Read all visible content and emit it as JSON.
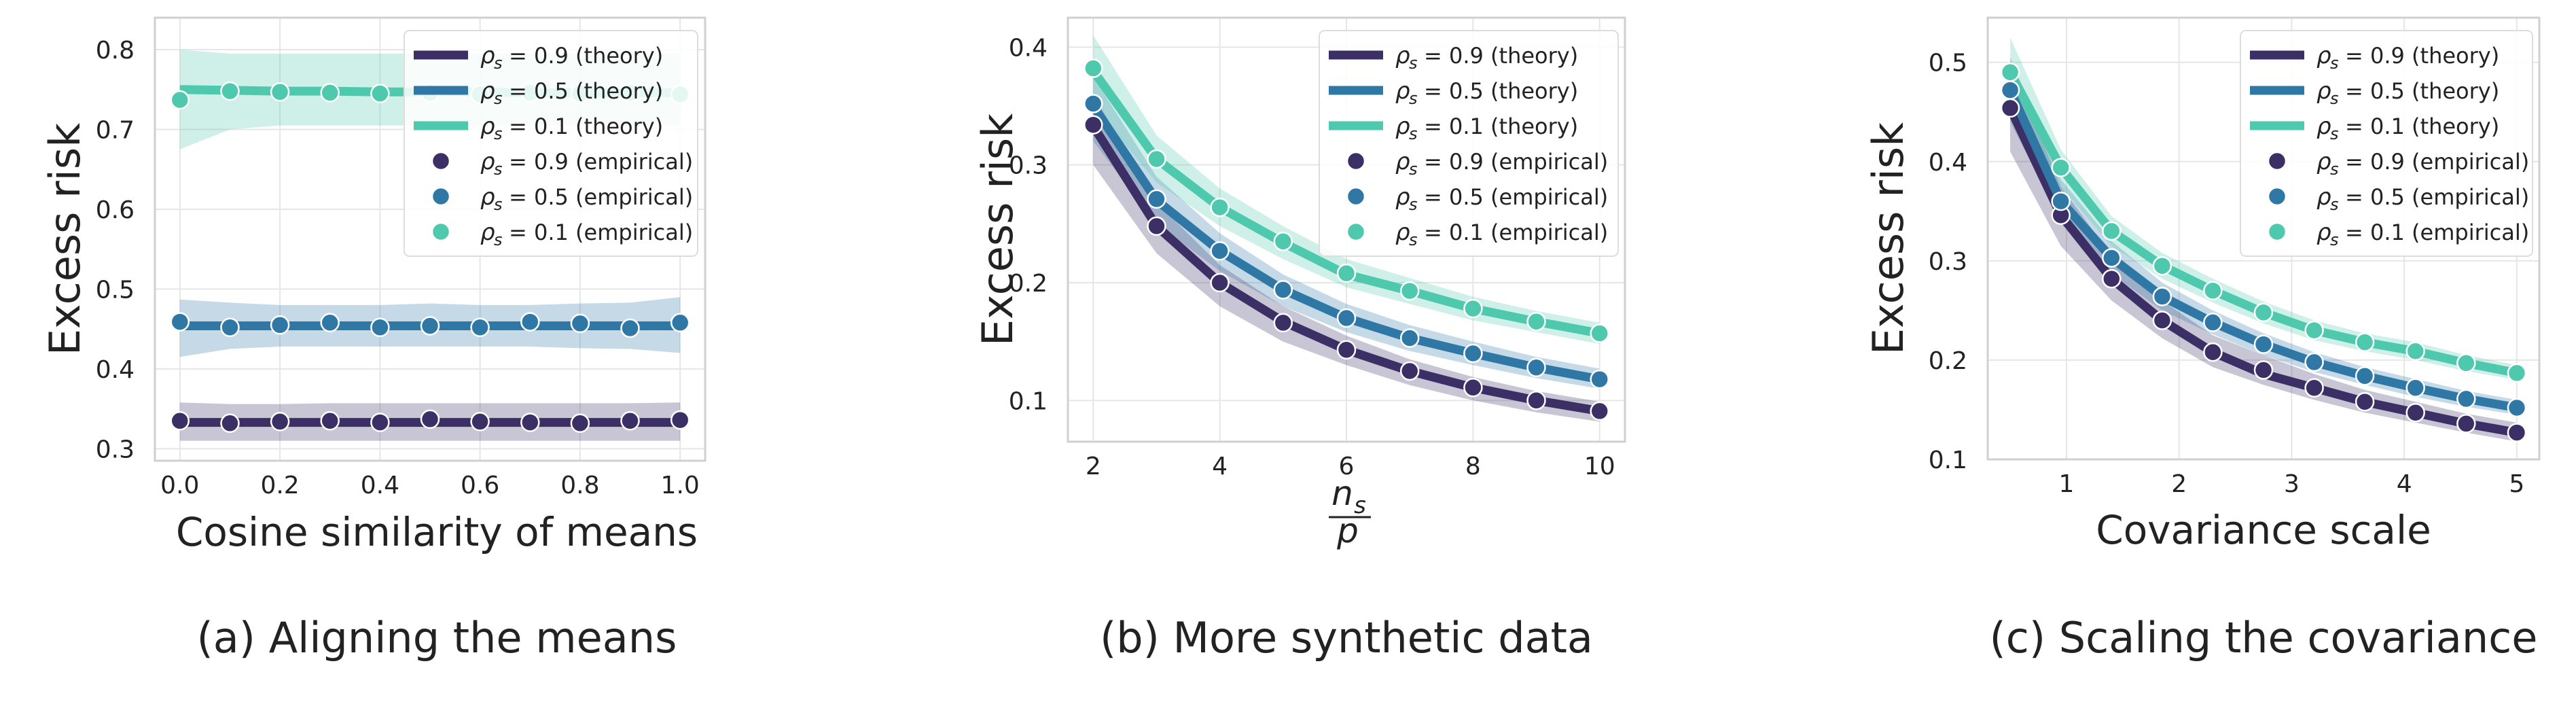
{
  "colors": {
    "rho_0.9": "#3b2f66",
    "rho_0.5": "#2f78a6",
    "rho_0.1": "#4ec9ad",
    "grid": "#e6e6e6",
    "frame": "#d0d0d0",
    "background": "#ffffff"
  },
  "legend_entries": [
    {
      "rho": "0.9",
      "kind": "theory",
      "text": "= 0.9 (theory)"
    },
    {
      "rho": "0.5",
      "kind": "theory",
      "text": "= 0.5 (theory)"
    },
    {
      "rho": "0.1",
      "kind": "theory",
      "text": "= 0.1 (theory)"
    },
    {
      "rho": "0.9",
      "kind": "empirical",
      "text": "= 0.9 (empirical)"
    },
    {
      "rho": "0.5",
      "kind": "empirical",
      "text": "= 0.5 (empirical)"
    },
    {
      "rho": "0.1",
      "kind": "empirical",
      "text": "= 0.1 (empirical)"
    }
  ],
  "legend_symbol": "ρ",
  "legend_subscript": "s",
  "chart_data": [
    {
      "type": "line",
      "caption": "(a) Aligning the means",
      "xlabel": "Cosine similarity of means",
      "ylabel": "Excess risk",
      "xlim": [
        -0.05,
        1.05
      ],
      "ylim": [
        0.285,
        0.84
      ],
      "xticks": [
        0.0,
        0.2,
        0.4,
        0.6,
        0.8,
        1.0
      ],
      "xtick_labels": [
        "0.0",
        "0.2",
        "0.4",
        "0.6",
        "0.8",
        "1.0"
      ],
      "yticks": [
        0.3,
        0.4,
        0.5,
        0.6,
        0.7,
        0.8
      ],
      "ytick_labels": [
        "0.3",
        "0.4",
        "0.5",
        "0.6",
        "0.7",
        "0.8"
      ],
      "grid": true,
      "legend_placement": "top-right",
      "x": [
        0.0,
        0.1,
        0.2,
        0.3,
        0.4,
        0.5,
        0.6,
        0.7,
        0.8,
        0.9,
        1.0
      ],
      "series": [
        {
          "name": "ρs = 0.9",
          "color_key": "rho_0.9",
          "theory": [
            0.333,
            0.333,
            0.333,
            0.333,
            0.333,
            0.333,
            0.333,
            0.333,
            0.333,
            0.333,
            0.333
          ],
          "empirical": [
            0.335,
            0.332,
            0.334,
            0.335,
            0.333,
            0.337,
            0.334,
            0.333,
            0.332,
            0.335,
            0.336
          ],
          "band_lower": [
            0.31,
            0.31,
            0.31,
            0.31,
            0.31,
            0.31,
            0.31,
            0.31,
            0.31,
            0.31,
            0.31
          ],
          "band_upper": [
            0.358,
            0.356,
            0.356,
            0.357,
            0.357,
            0.357,
            0.357,
            0.357,
            0.357,
            0.357,
            0.358
          ]
        },
        {
          "name": "ρs = 0.5",
          "color_key": "rho_0.5",
          "theory": [
            0.454,
            0.454,
            0.454,
            0.454,
            0.454,
            0.454,
            0.454,
            0.454,
            0.454,
            0.454,
            0.454
          ],
          "empirical": [
            0.459,
            0.452,
            0.455,
            0.458,
            0.452,
            0.454,
            0.452,
            0.459,
            0.457,
            0.451,
            0.458
          ],
          "band_lower": [
            0.415,
            0.425,
            0.428,
            0.428,
            0.428,
            0.428,
            0.428,
            0.428,
            0.426,
            0.425,
            0.42
          ],
          "band_upper": [
            0.487,
            0.483,
            0.48,
            0.48,
            0.48,
            0.482,
            0.48,
            0.48,
            0.482,
            0.483,
            0.49
          ]
        },
        {
          "name": "ρs = 0.1",
          "color_key": "rho_0.1",
          "theory": [
            0.75,
            0.749,
            0.748,
            0.748,
            0.747,
            0.747,
            0.747,
            0.746,
            0.746,
            0.746,
            0.746
          ],
          "empirical": [
            0.737,
            0.748,
            0.747,
            0.746,
            0.745,
            0.746,
            0.744,
            0.746,
            0.745,
            0.746,
            0.744
          ],
          "band_lower": [
            0.675,
            0.7,
            0.705,
            0.705,
            0.705,
            0.705,
            0.705,
            0.705,
            0.705,
            0.705,
            0.705
          ],
          "band_upper": [
            0.8,
            0.795,
            0.795,
            0.795,
            0.795,
            0.795,
            0.795,
            0.795,
            0.795,
            0.795,
            0.795
          ]
        }
      ]
    },
    {
      "type": "line",
      "caption": "(b) More synthetic data",
      "xlabel_num": "n",
      "xlabel_num_sub": "s",
      "xlabel_den": "p",
      "ylabel": "Excess risk",
      "xlim": [
        1.6,
        10.4
      ],
      "ylim": [
        0.065,
        0.425
      ],
      "xticks": [
        2,
        4,
        6,
        8,
        10
      ],
      "xtick_labels": [
        "2",
        "4",
        "6",
        "8",
        "10"
      ],
      "yticks": [
        0.1,
        0.2,
        0.3,
        0.4
      ],
      "ytick_labels": [
        "0.1",
        "0.2",
        "0.3",
        "0.4"
      ],
      "grid": true,
      "legend_placement": "top-right",
      "x": [
        2,
        3,
        4,
        5,
        6,
        7,
        8,
        9,
        10
      ],
      "series": [
        {
          "name": "ρs = 0.9",
          "color_key": "rho_0.9",
          "theory": [
            0.333,
            0.248,
            0.2,
            0.167,
            0.143,
            0.125,
            0.111,
            0.1,
            0.091
          ],
          "empirical": [
            0.334,
            0.248,
            0.2,
            0.166,
            0.143,
            0.125,
            0.111,
            0.1,
            0.091
          ],
          "band_lower": [
            0.3,
            0.225,
            0.18,
            0.15,
            0.13,
            0.113,
            0.1,
            0.09,
            0.082
          ],
          "band_upper": [
            0.36,
            0.268,
            0.215,
            0.18,
            0.155,
            0.135,
            0.12,
            0.108,
            0.099
          ]
        },
        {
          "name": "ρs = 0.5",
          "color_key": "rho_0.5",
          "theory": [
            0.35,
            0.27,
            0.227,
            0.194,
            0.17,
            0.153,
            0.14,
            0.128,
            0.118
          ],
          "empirical": [
            0.352,
            0.271,
            0.227,
            0.194,
            0.17,
            0.153,
            0.14,
            0.128,
            0.118
          ],
          "band_lower": [
            0.32,
            0.25,
            0.21,
            0.18,
            0.158,
            0.142,
            0.13,
            0.119,
            0.11
          ],
          "band_upper": [
            0.375,
            0.29,
            0.242,
            0.207,
            0.182,
            0.164,
            0.15,
            0.137,
            0.127
          ]
        },
        {
          "name": "ρs = 0.1",
          "color_key": "rho_0.1",
          "theory": [
            0.38,
            0.305,
            0.264,
            0.234,
            0.207,
            0.193,
            0.178,
            0.167,
            0.157
          ],
          "empirical": [
            0.382,
            0.305,
            0.264,
            0.235,
            0.208,
            0.193,
            0.178,
            0.167,
            0.157
          ],
          "band_lower": [
            0.35,
            0.285,
            0.248,
            0.22,
            0.196,
            0.182,
            0.168,
            0.158,
            0.148
          ],
          "band_upper": [
            0.41,
            0.325,
            0.28,
            0.248,
            0.22,
            0.204,
            0.188,
            0.176,
            0.166
          ]
        }
      ]
    },
    {
      "type": "line",
      "caption": "(c) Scaling the covariance",
      "xlabel": "Covariance scale",
      "ylabel": "Excess risk",
      "xlim": [
        0.3,
        5.2
      ],
      "ylim": [
        0.1,
        0.545
      ],
      "xticks": [
        1,
        2,
        3,
        4,
        5
      ],
      "xtick_labels": [
        "1",
        "2",
        "3",
        "4",
        "5"
      ],
      "yticks": [
        0.1,
        0.2,
        0.3,
        0.4,
        0.5
      ],
      "ytick_labels": [
        "0.1",
        "0.2",
        "0.3",
        "0.4",
        "0.5"
      ],
      "grid": true,
      "legend_placement": "top-right",
      "x": [
        0.5,
        0.95,
        1.4,
        1.85,
        2.3,
        2.75,
        3.2,
        3.65,
        4.1,
        4.55,
        5.0
      ],
      "series": [
        {
          "name": "ρs = 0.9",
          "color_key": "rho_0.9",
          "theory": [
            0.454,
            0.346,
            0.282,
            0.24,
            0.208,
            0.186,
            0.172,
            0.158,
            0.147,
            0.136,
            0.127
          ],
          "empirical": [
            0.454,
            0.346,
            0.282,
            0.24,
            0.208,
            0.19,
            0.172,
            0.158,
            0.147,
            0.136,
            0.127
          ],
          "band_lower": [
            0.41,
            0.315,
            0.26,
            0.222,
            0.193,
            0.175,
            0.16,
            0.147,
            0.137,
            0.127,
            0.118
          ],
          "band_upper": [
            0.5,
            0.375,
            0.305,
            0.26,
            0.225,
            0.205,
            0.186,
            0.17,
            0.158,
            0.146,
            0.137
          ]
        },
        {
          "name": "ρs = 0.5",
          "color_key": "rho_0.5",
          "theory": [
            0.472,
            0.36,
            0.303,
            0.264,
            0.238,
            0.216,
            0.198,
            0.184,
            0.172,
            0.161,
            0.152
          ],
          "empirical": [
            0.472,
            0.36,
            0.303,
            0.264,
            0.238,
            0.216,
            0.198,
            0.184,
            0.172,
            0.161,
            0.152
          ],
          "band_lower": [
            0.44,
            0.34,
            0.287,
            0.25,
            0.226,
            0.205,
            0.188,
            0.175,
            0.163,
            0.153,
            0.145
          ],
          "band_upper": [
            0.505,
            0.382,
            0.32,
            0.278,
            0.25,
            0.227,
            0.208,
            0.193,
            0.181,
            0.169,
            0.16
          ]
        },
        {
          "name": "ρs = 0.1",
          "color_key": "rho_0.1",
          "theory": [
            0.49,
            0.394,
            0.33,
            0.295,
            0.27,
            0.248,
            0.23,
            0.218,
            0.209,
            0.197,
            0.187
          ],
          "empirical": [
            0.49,
            0.394,
            0.33,
            0.295,
            0.27,
            0.248,
            0.23,
            0.218,
            0.209,
            0.197,
            0.187
          ],
          "band_lower": [
            0.46,
            0.375,
            0.315,
            0.282,
            0.258,
            0.237,
            0.22,
            0.209,
            0.2,
            0.189,
            0.18
          ],
          "band_upper": [
            0.525,
            0.412,
            0.345,
            0.308,
            0.282,
            0.259,
            0.24,
            0.227,
            0.218,
            0.205,
            0.195
          ]
        }
      ]
    }
  ]
}
